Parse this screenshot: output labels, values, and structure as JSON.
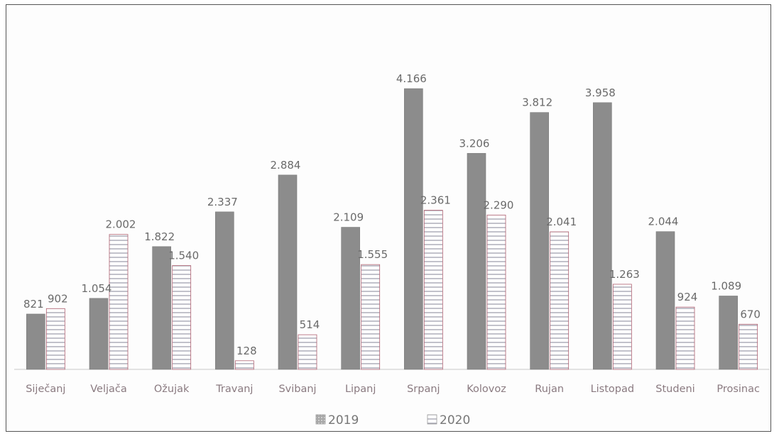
{
  "chart_data": {
    "type": "bar",
    "categories": [
      "Siječanj",
      "Veljača",
      "Ožujak",
      "Travanj",
      "Svibanj",
      "Lipanj",
      "Srpanj",
      "Kolovoz",
      "Rujan",
      "Listopad",
      "Studeni",
      "Prosinac"
    ],
    "series": [
      {
        "name": "2019",
        "values": [
          821,
          1054,
          1822,
          2337,
          2884,
          2109,
          4166,
          3206,
          3812,
          3958,
          2044,
          1089
        ],
        "labels": [
          "821",
          "1.054",
          "1.822",
          "2.337",
          "2.884",
          "2.109",
          "4.166",
          "3.206",
          "3.812",
          "3.958",
          "2.044",
          "1.089"
        ],
        "color": "#8c8c8c"
      },
      {
        "name": "2020",
        "values": [
          902,
          2002,
          1540,
          128,
          514,
          1555,
          2361,
          2290,
          2041,
          1263,
          924,
          670
        ],
        "labels": [
          "902",
          "2.002",
          "1.540",
          "128",
          "514",
          "1.555",
          "2.361",
          "2.290",
          "2.041",
          "1.263",
          "924",
          "670"
        ],
        "color": "#ffffff"
      }
    ],
    "ylim": [
      0,
      4300
    ],
    "grid": false,
    "legend": "bottom"
  }
}
